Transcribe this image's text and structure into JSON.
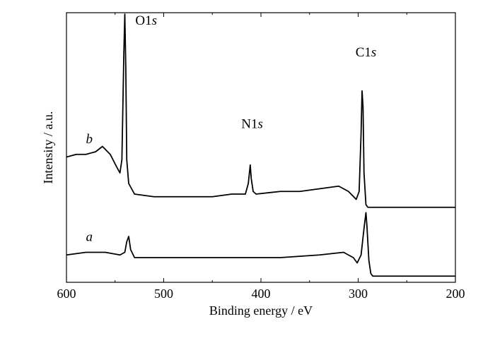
{
  "chart_data": {
    "type": "line",
    "title": "",
    "xlabel": "Binding energy / eV",
    "ylabel": "Intensity / a.u.",
    "xlim": [
      600,
      200
    ],
    "x_reversed": true,
    "y_ticks_shown": false,
    "x_ticks": [
      "600",
      "500",
      "400",
      "300",
      "200"
    ],
    "series": [
      {
        "name": "b",
        "points": [
          [
            600,
            0.46
          ],
          [
            590,
            0.47
          ],
          [
            580,
            0.47
          ],
          [
            570,
            0.48
          ],
          [
            563,
            0.5
          ],
          [
            555,
            0.47
          ],
          [
            548,
            0.42
          ],
          [
            545,
            0.4
          ],
          [
            543,
            0.45
          ],
          [
            541,
            0.85
          ],
          [
            540,
            1.0
          ],
          [
            539,
            0.8
          ],
          [
            538,
            0.45
          ],
          [
            536,
            0.36
          ],
          [
            530,
            0.32
          ],
          [
            510,
            0.31
          ],
          [
            490,
            0.31
          ],
          [
            470,
            0.31
          ],
          [
            450,
            0.31
          ],
          [
            430,
            0.32
          ],
          [
            416,
            0.32
          ],
          [
            413,
            0.36
          ],
          [
            411,
            0.43
          ],
          [
            410,
            0.38
          ],
          [
            408,
            0.33
          ],
          [
            405,
            0.32
          ],
          [
            380,
            0.33
          ],
          [
            360,
            0.33
          ],
          [
            340,
            0.34
          ],
          [
            320,
            0.35
          ],
          [
            310,
            0.33
          ],
          [
            302,
            0.3
          ],
          [
            299,
            0.33
          ],
          [
            297,
            0.55
          ],
          [
            296,
            0.71
          ],
          [
            295,
            0.65
          ],
          [
            294,
            0.4
          ],
          [
            292,
            0.28
          ],
          [
            290,
            0.27
          ],
          [
            270,
            0.27
          ],
          [
            250,
            0.27
          ],
          [
            230,
            0.27
          ],
          [
            200,
            0.27
          ]
        ]
      },
      {
        "name": "a",
        "points": [
          [
            600,
            0.09
          ],
          [
            580,
            0.1
          ],
          [
            560,
            0.1
          ],
          [
            545,
            0.09
          ],
          [
            540,
            0.1
          ],
          [
            538,
            0.14
          ],
          [
            536,
            0.16
          ],
          [
            534,
            0.11
          ],
          [
            530,
            0.08
          ],
          [
            500,
            0.08
          ],
          [
            460,
            0.08
          ],
          [
            420,
            0.08
          ],
          [
            380,
            0.08
          ],
          [
            340,
            0.09
          ],
          [
            315,
            0.1
          ],
          [
            305,
            0.08
          ],
          [
            301,
            0.06
          ],
          [
            297,
            0.09
          ],
          [
            294,
            0.19
          ],
          [
            292,
            0.25
          ],
          [
            291,
            0.2
          ],
          [
            289,
            0.07
          ],
          [
            287,
            0.02
          ],
          [
            285,
            0.01
          ],
          [
            260,
            0.01
          ],
          [
            230,
            0.01
          ],
          [
            200,
            0.01
          ]
        ]
      }
    ],
    "annotations": [
      {
        "text": "O1",
        "italic": "s",
        "x": 518,
        "y": 0.96
      },
      {
        "text": "N1",
        "italic": "s",
        "x": 409,
        "y": 0.57
      },
      {
        "text": "C1",
        "italic": "s",
        "x": 292,
        "y": 0.84
      }
    ]
  }
}
